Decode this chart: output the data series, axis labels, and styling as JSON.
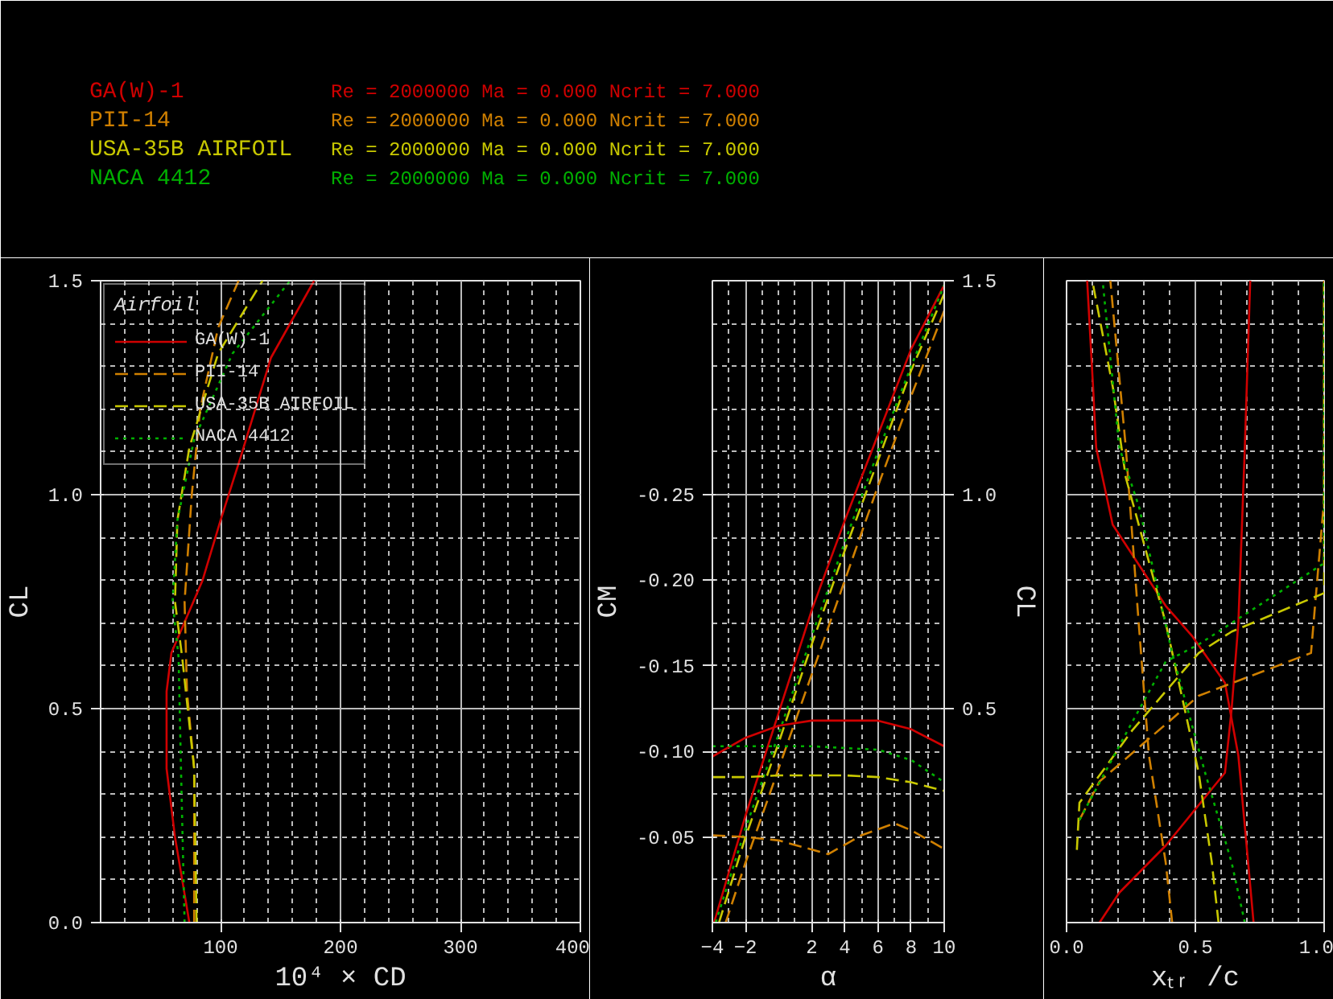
{
  "chart_data": [
    {
      "type": "line",
      "xlabel": "10⁴ × CD",
      "ylabel": "CL",
      "legend_title": "Airfoil",
      "legend": "top left",
      "grid": true,
      "xlim": [
        0,
        400
      ],
      "xticks": [
        100,
        200,
        300,
        400
      ],
      "ylim": [
        0,
        1.5
      ],
      "yticks": [
        {
          "value": 0,
          "label": "0.0"
        },
        {
          "value": 0.5,
          "label": "0.5"
        },
        {
          "value": 1.0,
          "label": "1.0"
        },
        {
          "value": 1.5,
          "label": "1.5"
        }
      ],
      "annotations": [
        "Re = 2000000   Ma = 0.000   Ncrit = 7.000",
        "Re = 2000000   Ma = 0.000   Ncrit = 7.000",
        "Re = 2000000   Ma = 0.000   Ncrit = 7.000",
        "Re = 2000000   Ma = 0.000   Ncrit = 7.000"
      ],
      "series": [
        {
          "name": "GA(W)-1",
          "color": "#d00000",
          "line_style": "solid",
          "x": [
            74,
            62,
            55,
            55,
            59,
            85,
            100,
            117,
            142,
            178
          ],
          "values": [
            0,
            0.2,
            0.36,
            0.54,
            0.63,
            0.8,
            0.94,
            1.09,
            1.32,
            1.5
          ]
        },
        {
          "name": "PII-14",
          "color": "#d08000",
          "line_style": "dashed",
          "x": [
            78,
            78,
            72,
            70,
            76,
            83,
            98,
            115
          ],
          "values": [
            0,
            0.36,
            0.54,
            0.75,
            1.0,
            1.2,
            1.39,
            1.5
          ]
        },
        {
          "name": "USA-35B AIRFOIL",
          "color": "#c8c800",
          "line_style": "dashed",
          "x": [
            80,
            78,
            68,
            62,
            64,
            74,
            98,
            135
          ],
          "values": [
            0,
            0.36,
            0.62,
            0.75,
            0.94,
            1.11,
            1.33,
            1.5
          ]
        },
        {
          "name": "NACA 4412",
          "color": "#00b000",
          "line_style": "dotted",
          "x": [
            70,
            67,
            65,
            60,
            64,
            78,
            110,
            158
          ],
          "values": [
            0,
            0.36,
            0.62,
            0.75,
            0.94,
            1.13,
            1.33,
            1.5
          ]
        }
      ]
    },
    {
      "type": "line",
      "xlabel": "α",
      "ylabel": "CL",
      "y2label": "CM",
      "grid": true,
      "xlim": [
        -4,
        10
      ],
      "xticks": [
        -4,
        -2,
        2,
        4,
        6,
        8,
        10
      ],
      "ylim": [
        0,
        1.5
      ],
      "yticks": [
        {
          "value": 0.5,
          "label": "0.5"
        },
        {
          "value": 1.0,
          "label": "1.0"
        },
        {
          "value": 1.5,
          "label": "1.5"
        }
      ],
      "y2lim": [
        0,
        -0.375
      ],
      "y2ticks": [
        {
          "value": -0.05,
          "label": "-0.05"
        },
        {
          "value": -0.1,
          "label": "-0.10"
        },
        {
          "value": -0.15,
          "label": "-0.15"
        },
        {
          "value": -0.2,
          "label": "-0.20"
        },
        {
          "value": -0.25,
          "label": "-0.25"
        }
      ],
      "series": [
        {
          "color": "#d00000",
          "line_style": "solid",
          "x": [
            -3.9,
            -2,
            0,
            2,
            4,
            6,
            8,
            10
          ],
          "values": [
            0,
            0.25,
            0.49,
            0.73,
            0.94,
            1.14,
            1.34,
            1.49
          ]
        },
        {
          "color": "#d08000",
          "line_style": "dashed",
          "x": [
            -3.2,
            -2,
            0,
            2,
            4,
            6,
            8,
            10
          ],
          "values": [
            0,
            0.14,
            0.36,
            0.58,
            0.8,
            1.02,
            1.23,
            1.43
          ]
        },
        {
          "color": "#c8c800",
          "line_style": "dashed",
          "x": [
            -3.6,
            -2,
            0,
            2,
            4,
            6,
            8,
            10
          ],
          "values": [
            0,
            0.2,
            0.42,
            0.65,
            0.87,
            1.08,
            1.29,
            1.47
          ]
        },
        {
          "color": "#00b000",
          "line_style": "dotted",
          "x": [
            -3.8,
            -2,
            0,
            2,
            4,
            6,
            8,
            10
          ],
          "values": [
            0,
            0.22,
            0.44,
            0.67,
            0.89,
            1.1,
            1.3,
            1.49
          ]
        },
        {
          "color": "#d00000",
          "line_style": "solid",
          "axis": "y2",
          "x": [
            -4,
            -2,
            0,
            2,
            4,
            6,
            8,
            10
          ],
          "values": [
            -0.097,
            -0.108,
            -0.115,
            -0.118,
            -0.118,
            -0.118,
            -0.113,
            -0.103
          ]
        },
        {
          "color": "#d08000",
          "line_style": "dashed",
          "axis": "y2",
          "x": [
            -4,
            -2,
            0,
            3,
            5,
            7,
            8,
            10
          ],
          "values": [
            -0.051,
            -0.05,
            -0.048,
            -0.04,
            -0.051,
            -0.058,
            -0.054,
            -0.043
          ]
        },
        {
          "color": "#c8c800",
          "line_style": "dashed",
          "axis": "y2",
          "x": [
            -4,
            -2,
            0,
            2,
            4,
            6,
            8,
            10
          ],
          "values": [
            -0.085,
            -0.085,
            -0.086,
            -0.086,
            -0.086,
            -0.085,
            -0.082,
            -0.077
          ]
        },
        {
          "color": "#00b000",
          "line_style": "dotted",
          "axis": "y2",
          "x": [
            -4,
            -2,
            0,
            2,
            4,
            6,
            8,
            10
          ],
          "values": [
            -0.103,
            -0.103,
            -0.103,
            -0.103,
            -0.102,
            -0.101,
            -0.095,
            -0.082
          ]
        }
      ]
    },
    {
      "type": "line",
      "xlabel": "xₜᵣ /c",
      "grid": true,
      "tick_labels": "x",
      "xlim": [
        0,
        1
      ],
      "xticks": [
        {
          "value": 0,
          "label": "0.0"
        },
        {
          "value": 0.5,
          "label": "0.5"
        },
        {
          "value": 1,
          "label": "1.0"
        }
      ],
      "ylim": [
        0,
        1.5
      ],
      "yticks": [
        0,
        0.5,
        1.0,
        1.5
      ],
      "series": [
        {
          "color": "#d00000",
          "line_style": "solid",
          "x": [
            0.726,
            0.705,
            0.667,
            0.615,
            0.487,
            0.385,
            0.179,
            0.115,
            0.103,
            0.08
          ],
          "values": [
            0,
            0.14,
            0.39,
            0.56,
            0.67,
            0.74,
            0.93,
            1.11,
            1.25,
            1.5
          ]
        },
        {
          "color": "#d00000",
          "line_style": "solid",
          "x": [
            0.128,
            0.205,
            0.385,
            0.615,
            0.641,
            0.667,
            0.692,
            0.713
          ],
          "values": [
            0,
            0.07,
            0.18,
            0.35,
            0.5,
            0.7,
            1.11,
            1.5
          ]
        },
        {
          "color": "#d08000",
          "line_style": "dashed",
          "x": [
            0.41,
            0.385,
            0.32,
            0.28,
            0.23,
            0.17
          ],
          "values": [
            0,
            0.14,
            0.39,
            0.7,
            1.11,
            1.5
          ]
        },
        {
          "color": "#d08000",
          "line_style": "dashed",
          "x": [
            0.05,
            0.128,
            0.513,
            0.949,
            1.0,
            1.0
          ],
          "values": [
            0.24,
            0.33,
            0.53,
            0.63,
            0.99,
            1.5
          ]
        },
        {
          "color": "#c8c800",
          "line_style": "dashed",
          "x": [
            0.59,
            0.564,
            0.513,
            0.385,
            0.23,
            0.18,
            0.1
          ],
          "values": [
            0,
            0.14,
            0.35,
            0.7,
            1.04,
            1.25,
            1.5
          ]
        },
        {
          "color": "#c8c800",
          "line_style": "dashed",
          "x": [
            0.04,
            0.05,
            0.256,
            0.513,
            0.641,
            1.0,
            1.0
          ],
          "values": [
            0.17,
            0.28,
            0.45,
            0.63,
            0.68,
            0.77,
            1.5
          ]
        },
        {
          "color": "#00b000",
          "line_style": "dotted",
          "x": [
            0.692,
            0.641,
            0.538,
            0.41,
            0.282,
            0.205,
            0.14
          ],
          "values": [
            0,
            0.14,
            0.35,
            0.63,
            0.97,
            1.11,
            1.5
          ]
        },
        {
          "color": "#00b000",
          "line_style": "dotted",
          "x": [
            0.05,
            0.256,
            0.385,
            0.513,
            0.641,
            1.0,
            1.0
          ],
          "values": [
            0.24,
            0.47,
            0.61,
            0.65,
            0.7,
            0.84,
            1.5
          ]
        }
      ]
    }
  ]
}
